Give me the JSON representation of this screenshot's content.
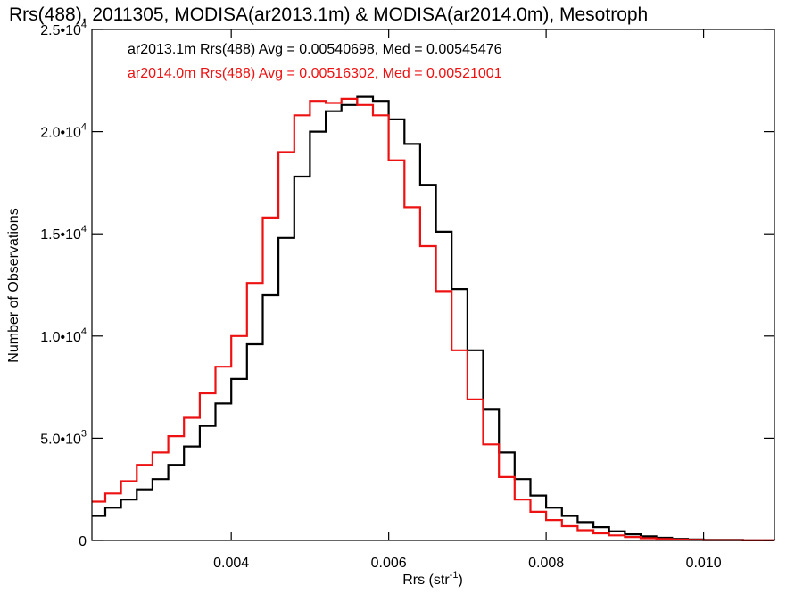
{
  "chart_data": {
    "type": "line",
    "title": "Rrs(488), 2011305, MODISA(ar2013.1m) & MODISA(ar2014.0m), Mesotroph",
    "xlabel": "Rrs (str⁻¹)",
    "ylabel": "Number of Observations",
    "xlim": [
      0.00223,
      0.0109
    ],
    "ylim": [
      0,
      25000
    ],
    "x_ticks": [
      {
        "value": 0.004,
        "label": "0.004"
      },
      {
        "value": 0.006,
        "label": "0.006"
      },
      {
        "value": 0.008,
        "label": "0.008"
      },
      {
        "value": 0.01,
        "label": "0.010"
      }
    ],
    "y_ticks": [
      {
        "value": 0,
        "mant": "0",
        "exp": ""
      },
      {
        "value": 5000,
        "mant": "5.0•10",
        "exp": "3"
      },
      {
        "value": 10000,
        "mant": "1.0•10",
        "exp": "4"
      },
      {
        "value": 15000,
        "mant": "1.5•10",
        "exp": "4"
      },
      {
        "value": 20000,
        "mant": "2.0•10",
        "exp": "4"
      },
      {
        "value": 25000,
        "mant": "2.5•10",
        "exp": "4"
      }
    ],
    "grid": false,
    "legend_position": "top-left",
    "series": [
      {
        "name": "ar2013.1m Rrs(488) Avg = 0.00540698, Med = 0.00545476",
        "color": "#000000",
        "x": [
          0.00223,
          0.0024,
          0.0026,
          0.0028,
          0.003,
          0.0032,
          0.0034,
          0.0036,
          0.0038,
          0.004,
          0.0042,
          0.0044,
          0.0046,
          0.0048,
          0.005,
          0.0052,
          0.0054,
          0.0056,
          0.0058,
          0.006,
          0.0062,
          0.0064,
          0.0066,
          0.0068,
          0.007,
          0.0072,
          0.0074,
          0.0076,
          0.0078,
          0.008,
          0.0082,
          0.0084,
          0.0086,
          0.0088,
          0.009,
          0.0092,
          0.0094,
          0.0096,
          0.0098,
          0.01,
          0.0105,
          0.0109
        ],
        "y": [
          1200,
          1600,
          2000,
          2500,
          3000,
          3700,
          4600,
          5600,
          6700,
          7900,
          9600,
          12000,
          14800,
          17800,
          20000,
          21000,
          21300,
          21700,
          21500,
          20600,
          19400,
          17400,
          15100,
          12300,
          9300,
          6400,
          4300,
          3000,
          2200,
          1600,
          1200,
          900,
          650,
          450,
          300,
          200,
          130,
          80,
          50,
          30,
          10,
          0
        ]
      },
      {
        "name": "ar2014.0m Rrs(488) Avg = 0.00516302, Med = 0.00521001",
        "color": "#ee1111",
        "x": [
          0.00223,
          0.0024,
          0.0026,
          0.0028,
          0.003,
          0.0032,
          0.0034,
          0.0036,
          0.0038,
          0.004,
          0.0042,
          0.0044,
          0.0046,
          0.0048,
          0.005,
          0.0052,
          0.0054,
          0.0056,
          0.0058,
          0.006,
          0.0062,
          0.0064,
          0.0066,
          0.0068,
          0.007,
          0.0072,
          0.0074,
          0.0076,
          0.0078,
          0.008,
          0.0082,
          0.0084,
          0.0086,
          0.0088,
          0.009,
          0.0092,
          0.0094,
          0.0096,
          0.0098,
          0.01,
          0.0105,
          0.0109
        ],
        "y": [
          1900,
          2300,
          2900,
          3700,
          4300,
          5100,
          6000,
          7200,
          8500,
          10000,
          12600,
          15800,
          19000,
          20800,
          21500,
          21400,
          21600,
          21300,
          20800,
          18600,
          16300,
          14400,
          12200,
          9300,
          6900,
          4700,
          3100,
          2000,
          1400,
          1000,
          700,
          500,
          350,
          250,
          170,
          110,
          70,
          45,
          25,
          15,
          5,
          0
        ]
      }
    ]
  }
}
